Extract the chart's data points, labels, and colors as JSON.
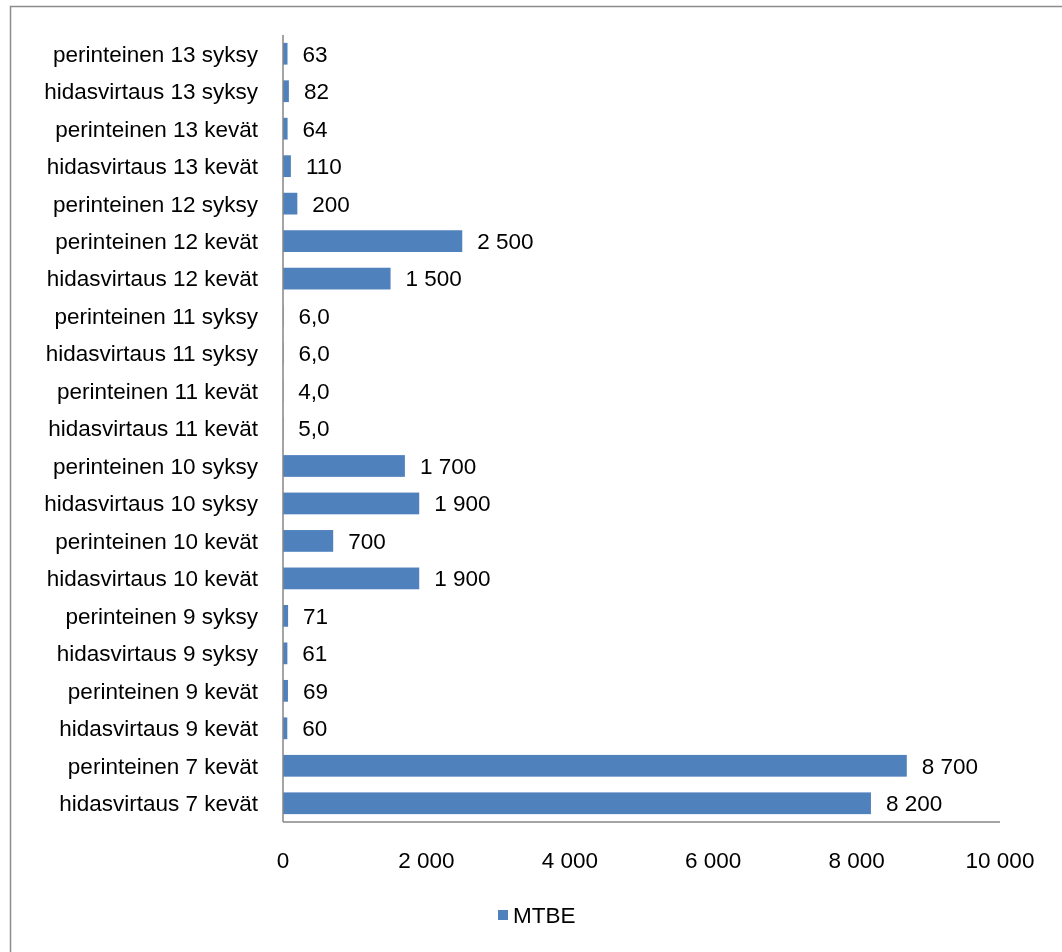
{
  "chart_data": {
    "type": "bar",
    "orientation": "horizontal",
    "categories": [
      "perinteinen 13 syksy",
      "hidasvirtaus 13 syksy",
      "perinteinen 13 kevät",
      "hidasvirtaus 13 kevät",
      "perinteinen 12 syksy",
      "perinteinen 12 kevät",
      "hidasvirtaus 12 kevät",
      "perinteinen 11 syksy",
      "hidasvirtaus 11 syksy",
      "perinteinen 11 kevät",
      "hidasvirtaus 11 kevät",
      "perinteinen 10 syksy",
      "hidasvirtaus 10 syksy",
      "perinteinen 10 kevät",
      "hidasvirtaus 10 kevät",
      "perinteinen 9 syksy",
      "hidasvirtaus 9 syksy",
      "perinteinen 9 kevät",
      "hidasvirtaus 9 kevät",
      "perinteinen 7 kevät",
      "hidasvirtaus 7 kevät"
    ],
    "series": [
      {
        "name": "MTBE",
        "color": "#4f81bd",
        "values": [
          63,
          82,
          64,
          110,
          200,
          2500,
          1500,
          6.0,
          6.0,
          4.0,
          5.0,
          1700,
          1900,
          700,
          1900,
          71,
          61,
          69,
          60,
          8700,
          8200
        ],
        "value_labels": [
          "63",
          "82",
          "64",
          "110",
          "200",
          "2 500",
          "1 500",
          "6,0",
          "6,0",
          "4,0",
          "5,0",
          "1 700",
          "1 900",
          "700",
          "1 900",
          "71",
          "61",
          "69",
          "60",
          "8 700",
          "8 200"
        ]
      }
    ],
    "xlim": [
      0,
      10000
    ],
    "xticks": [
      0,
      {
        "value": 2000,
        "label": "2 000"
      },
      {
        "value": 4000,
        "label": "4 000"
      },
      {
        "value": 6000,
        "label": "6 000"
      },
      {
        "value": 8000,
        "label": "8 000"
      },
      {
        "value": 10000,
        "label": "10 000"
      }
    ],
    "legend": "bottom"
  }
}
